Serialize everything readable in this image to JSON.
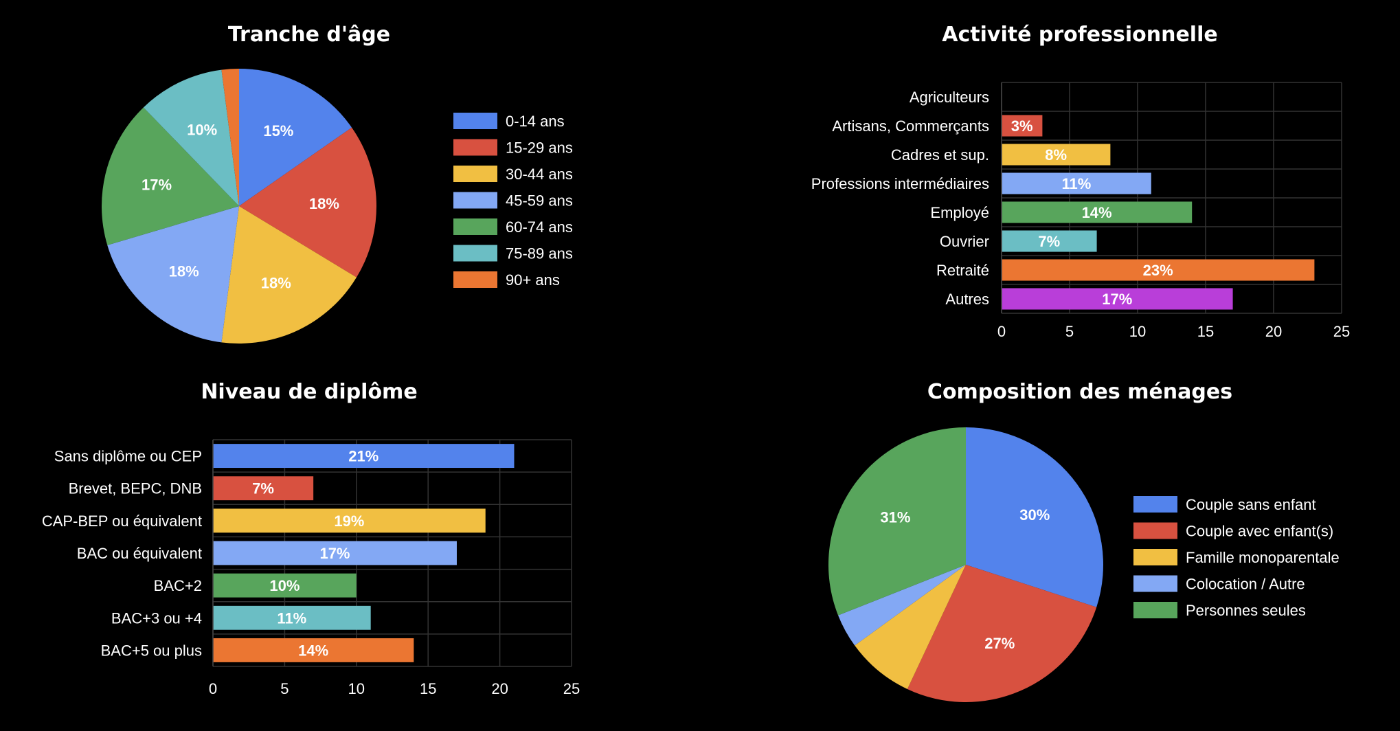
{
  "chart_data": [
    {
      "id": "age",
      "type": "pie",
      "title": "Tranche d'âge",
      "categories": [
        "0-14 ans",
        "15-29 ans",
        "30-44 ans",
        "45-59 ans",
        "60-74 ans",
        "75-89 ans",
        "90+ ans"
      ],
      "values": [
        15,
        18,
        18,
        18,
        17,
        10,
        2
      ],
      "labels": [
        "15%",
        "18%",
        "18%",
        "18%",
        "17%",
        "10%",
        ""
      ],
      "colors": [
        "#5383EC",
        "#D85140",
        "#F1BF42",
        "#83A8F4",
        "#58A55C",
        "#6BBEC4",
        "#EB7632"
      ],
      "legend": "right"
    },
    {
      "id": "activite",
      "type": "bar",
      "orientation": "horizontal",
      "title": "Activité professionnelle",
      "categories": [
        "Agriculteurs",
        "Artisans, Commerçants",
        "Cadres et sup.",
        "Professions intermédiaires",
        "Employé",
        "Ouvrier",
        "Retraité",
        "Autres"
      ],
      "values": [
        0,
        3,
        8,
        11,
        14,
        7,
        23,
        17
      ],
      "labels": [
        "",
        "3%",
        "8%",
        "11%",
        "14%",
        "7%",
        "23%",
        "17%"
      ],
      "colors": [
        "#5383EC",
        "#D85140",
        "#F1BF42",
        "#83A8F4",
        "#58A55C",
        "#6BBEC4",
        "#EB7632",
        "#B93ED9"
      ],
      "xlim": [
        0,
        25
      ],
      "xticks": [
        0,
        5,
        10,
        15,
        20,
        25
      ],
      "grid": true
    },
    {
      "id": "diplome",
      "type": "bar",
      "orientation": "horizontal",
      "title": "Niveau de diplôme",
      "categories": [
        "Sans diplôme ou CEP",
        "Brevet, BEPC, DNB",
        "CAP-BEP ou équivalent",
        "BAC ou équivalent",
        "BAC+2",
        "BAC+3 ou +4",
        "BAC+5 ou plus"
      ],
      "values": [
        21,
        7,
        19,
        17,
        10,
        11,
        14
      ],
      "labels": [
        "21%",
        "7%",
        "19%",
        "17%",
        "10%",
        "11%",
        "14%"
      ],
      "colors": [
        "#5383EC",
        "#D85140",
        "#F1BF42",
        "#83A8F4",
        "#58A55C",
        "#6BBEC4",
        "#EB7632"
      ],
      "xlim": [
        0,
        25
      ],
      "xticks": [
        0,
        5,
        10,
        15,
        20,
        25
      ],
      "grid": true
    },
    {
      "id": "menages",
      "type": "pie",
      "title": "Composition des ménages",
      "categories": [
        "Couple sans enfant",
        "Couple avec enfant(s)",
        "Famille monoparentale",
        "Colocation / Autre",
        "Personnes seules"
      ],
      "values": [
        30,
        27,
        8,
        4,
        31
      ],
      "labels": [
        "30%",
        "27%",
        "",
        "",
        "31%"
      ],
      "colors": [
        "#5383EC",
        "#D85140",
        "#F1BF42",
        "#83A8F4",
        "#58A55C"
      ],
      "legend": "right"
    }
  ]
}
